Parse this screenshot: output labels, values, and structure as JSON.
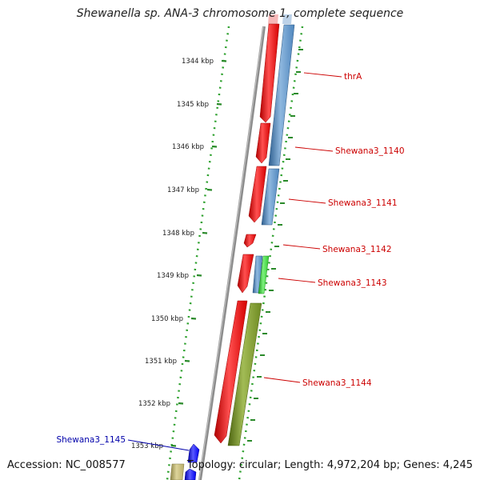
{
  "title": "Shewanella sp. ANA-3 chromosome 1, complete sequence",
  "footer": {
    "accession": "Accession: NC_008577",
    "topology": "Topology: circular; Length: 4,972,204 bp; Genes: 4,245"
  },
  "ruler_ticks": [
    "1344 kbp",
    "1345 kbp",
    "1346 kbp",
    "1347 kbp",
    "1348 kbp",
    "1349 kbp",
    "1350 kbp",
    "1351 kbp",
    "1352 kbp",
    "1353 kbp"
  ],
  "gene_labels": [
    {
      "text": "thrA",
      "color": "#cc0000"
    },
    {
      "text": "Shewana3_1140",
      "color": "#cc0000"
    },
    {
      "text": "Shewana3_1141",
      "color": "#cc0000"
    },
    {
      "text": "Shewana3_1142",
      "color": "#cc0000"
    },
    {
      "text": "Shewana3_1143",
      "color": "#cc0000"
    },
    {
      "text": "Shewana3_1144",
      "color": "#cc0000"
    },
    {
      "text": "Shewana3_1145",
      "color": "#0000aa"
    }
  ],
  "colors": {
    "forward_gene": "#ee0000",
    "reverse_gene_blue": "#4f86bd",
    "reverse_gene_olive": "#6e8a22",
    "small_green": "#33cc33",
    "reverse_gene_navy": "#0000ee",
    "tan_gene": "#b8ae6a",
    "backbone": "#8c8c8c",
    "tick_green": "#2a8a2a",
    "dotted_guide": "#2ca02c"
  }
}
